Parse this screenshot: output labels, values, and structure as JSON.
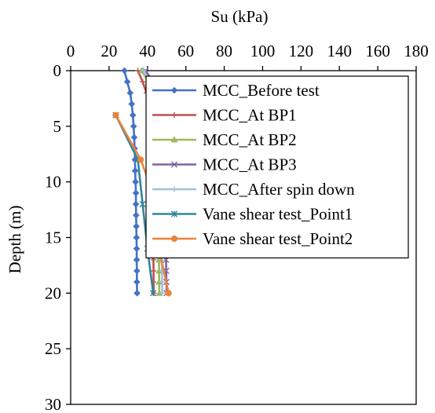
{
  "chart_data": {
    "type": "line",
    "orientation": "depth-profile",
    "title": "",
    "xlabel": "Su (kPa)",
    "ylabel": "Depth (m)",
    "xlim": [
      0,
      180
    ],
    "ylim": [
      0,
      30
    ],
    "x_axis_position": "top",
    "y_axis_inverted": true,
    "x_ticks": [
      0,
      20,
      40,
      60,
      80,
      100,
      120,
      140,
      160,
      180
    ],
    "y_ticks": [
      0,
      5,
      10,
      15,
      20,
      25,
      30
    ],
    "grid": false,
    "legend_position": "top-right",
    "series": [
      {
        "name": "MCC_Before test",
        "color": "#4472C4",
        "marker": "diamond",
        "points": [
          [
            28,
            0
          ],
          [
            29.5,
            1
          ],
          [
            31,
            2
          ],
          [
            31.8,
            3
          ],
          [
            32.4,
            4
          ],
          [
            32.8,
            5
          ],
          [
            33.1,
            6
          ],
          [
            33.3,
            7
          ],
          [
            33.5,
            8
          ],
          [
            33.6,
            9
          ],
          [
            33.8,
            10
          ],
          [
            34,
            11
          ],
          [
            34,
            12
          ],
          [
            34.1,
            13
          ],
          [
            34.2,
            14
          ],
          [
            34.3,
            15
          ],
          [
            34.4,
            16
          ],
          [
            34.4,
            17
          ],
          [
            34.5,
            18
          ],
          [
            34.5,
            19
          ],
          [
            34.6,
            20
          ]
        ]
      },
      {
        "name": "MCC_At BP1",
        "color": "#C0504D",
        "marker": "plus",
        "points": [
          [
            35,
            0
          ],
          [
            37.5,
            1
          ],
          [
            39.5,
            2
          ],
          [
            40.5,
            3
          ],
          [
            41,
            4
          ],
          [
            41.5,
            5
          ],
          [
            41.8,
            6
          ],
          [
            42,
            7
          ],
          [
            42.2,
            8
          ],
          [
            42.3,
            9
          ],
          [
            42.5,
            10
          ],
          [
            42.6,
            11
          ],
          [
            42.7,
            12
          ],
          [
            42.8,
            13
          ],
          [
            42.9,
            14
          ],
          [
            43,
            15
          ],
          [
            43,
            16
          ],
          [
            43.1,
            17
          ],
          [
            43.2,
            18
          ],
          [
            43.2,
            19
          ],
          [
            43.3,
            20
          ]
        ]
      },
      {
        "name": "MCC_At BP2",
        "color": "#9BBB59",
        "marker": "triangle",
        "points": [
          [
            37,
            0
          ],
          [
            40.5,
            1
          ],
          [
            42.5,
            2
          ],
          [
            43.5,
            3
          ],
          [
            44,
            4
          ],
          [
            44.4,
            5
          ],
          [
            44.7,
            6
          ],
          [
            44.9,
            7
          ],
          [
            45.1,
            8
          ],
          [
            45.2,
            9
          ],
          [
            45.4,
            10
          ],
          [
            45.5,
            11
          ],
          [
            45.6,
            12
          ],
          [
            45.7,
            13
          ],
          [
            45.8,
            14
          ],
          [
            45.9,
            15
          ],
          [
            46,
            16
          ],
          [
            46,
            17
          ],
          [
            46.1,
            18
          ],
          [
            46.1,
            19
          ],
          [
            46.2,
            20
          ]
        ]
      },
      {
        "name": "MCC_At BP3",
        "color": "#8064A2",
        "marker": "cross",
        "points": [
          [
            39,
            0
          ],
          [
            43,
            1
          ],
          [
            45.5,
            2
          ],
          [
            46.5,
            3
          ],
          [
            47.2,
            4
          ],
          [
            47.6,
            5
          ],
          [
            48,
            6
          ],
          [
            48.3,
            7
          ],
          [
            48.5,
            8
          ],
          [
            48.7,
            9
          ],
          [
            48.9,
            10
          ],
          [
            49,
            11
          ],
          [
            49.2,
            12
          ],
          [
            49.3,
            13
          ],
          [
            49.4,
            14
          ],
          [
            49.5,
            15
          ],
          [
            49.6,
            16
          ],
          [
            49.7,
            17
          ],
          [
            49.8,
            18
          ],
          [
            49.9,
            19
          ],
          [
            50,
            20
          ]
        ]
      },
      {
        "name": "MCC_After spin down",
        "color": "#A5BFDD",
        "marker": "plus",
        "points": [
          [
            38,
            0
          ],
          [
            41.5,
            1
          ],
          [
            44,
            2
          ],
          [
            45,
            3
          ],
          [
            45.5,
            4
          ],
          [
            45.9,
            5
          ],
          [
            46.2,
            6
          ],
          [
            46.4,
            7
          ],
          [
            46.6,
            8
          ],
          [
            46.7,
            9
          ],
          [
            46.9,
            10
          ],
          [
            47,
            11
          ],
          [
            47.1,
            12
          ],
          [
            47.2,
            13
          ],
          [
            47.3,
            14
          ],
          [
            47.4,
            15
          ],
          [
            47.5,
            16
          ],
          [
            47.5,
            17
          ],
          [
            47.6,
            18
          ],
          [
            47.6,
            19
          ],
          [
            47.7,
            20
          ]
        ]
      },
      {
        "name": "Vane shear test_Point1",
        "color": "#31859C",
        "marker": "star",
        "points": [
          [
            23.5,
            4
          ],
          [
            35,
            8
          ],
          [
            37.5,
            12
          ],
          [
            40,
            16
          ],
          [
            43,
            20
          ]
        ]
      },
      {
        "name": "Vane shear test_Point2",
        "color": "#E8853B",
        "marker": "circle",
        "points": [
          [
            23.5,
            4
          ],
          [
            36.5,
            8
          ],
          [
            45,
            12
          ],
          [
            46,
            16
          ],
          [
            51,
            20
          ]
        ]
      }
    ]
  }
}
